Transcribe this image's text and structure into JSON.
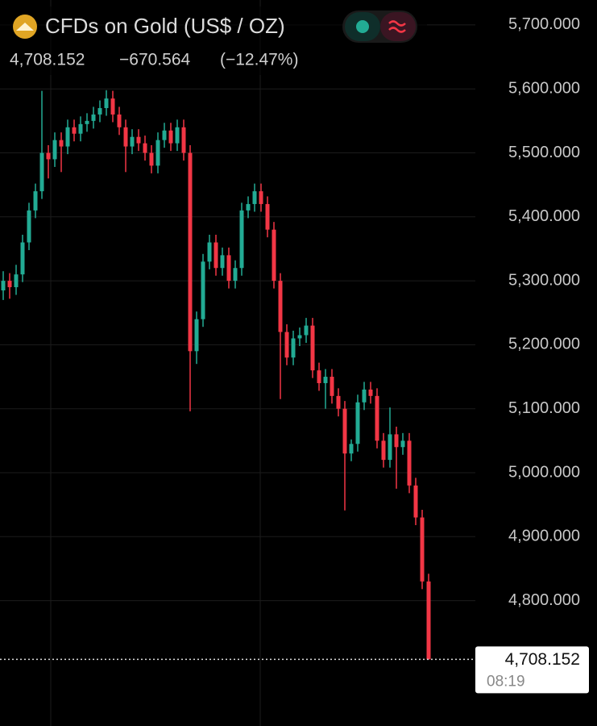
{
  "chart_data": {
    "type": "candlestick",
    "title": "CFDs on Gold (US$ / OZ)",
    "last": "4,708.152",
    "change": "−670.564",
    "change_pct": "(−12.47%)",
    "time": "08:19",
    "up_color": "#22ab94",
    "down_color": "#f23645",
    "ylim": [
      4604,
      5739
    ],
    "yticks": [
      {
        "value": 5700,
        "label": "5,700.000"
      },
      {
        "value": 5600,
        "label": "5,600.000"
      },
      {
        "value": 5500,
        "label": "5,500.000"
      },
      {
        "value": 5400,
        "label": "5,400.000"
      },
      {
        "value": 5300,
        "label": "5,300.000"
      },
      {
        "value": 5200,
        "label": "5,200.000"
      },
      {
        "value": 5100,
        "label": "5,100.000"
      },
      {
        "value": 5000,
        "label": "5,000.000"
      },
      {
        "value": 4900,
        "label": "4,900.000"
      },
      {
        "value": 4800,
        "label": "4,800.000"
      }
    ],
    "grid": true,
    "open": [
      5285,
      5300,
      5290,
      5310,
      5360,
      5410,
      5440,
      5500,
      5490,
      5520,
      5510,
      5540,
      5530,
      5545,
      5550,
      5560,
      5570,
      5585,
      5560,
      5540,
      5510,
      5525,
      5515,
      5500,
      5480,
      5520,
      5535,
      5515,
      5540,
      5500,
      5190,
      5240,
      5330,
      5360,
      5320,
      5340,
      5300,
      5320,
      5410,
      5420,
      5440,
      5420,
      5380,
      5300,
      5220,
      5180,
      5210,
      5215,
      5230,
      5160,
      5140,
      5150,
      5120,
      5100,
      5030,
      5045,
      5110,
      5130,
      5120,
      5050,
      5020,
      5060,
      5040,
      5050,
      4980,
      4930,
      4830
    ],
    "high": [
      5315,
      5312,
      5325,
      5372,
      5422,
      5452,
      5597,
      5512,
      5532,
      5532,
      5552,
      5552,
      5557,
      5562,
      5572,
      5582,
      5598,
      5597,
      5572,
      5552,
      5537,
      5537,
      5527,
      5512,
      5532,
      5547,
      5547,
      5552,
      5552,
      5512,
      5252,
      5342,
      5372,
      5372,
      5352,
      5352,
      5332,
      5422,
      5432,
      5452,
      5452,
      5432,
      5392,
      5312,
      5232,
      5222,
      5227,
      5242,
      5242,
      5172,
      5162,
      5162,
      5132,
      5112,
      5052,
      5122,
      5142,
      5142,
      5132,
      5062,
      5102,
      5072,
      5062,
      5062,
      4992,
      4942,
      4842
    ],
    "low": [
      5270,
      5272,
      5278,
      5298,
      5348,
      5398,
      5428,
      5460,
      5478,
      5470,
      5498,
      5518,
      5518,
      5533,
      5538,
      5548,
      5558,
      5548,
      5528,
      5470,
      5498,
      5503,
      5488,
      5468,
      5468,
      5508,
      5503,
      5503,
      5488,
      5096,
      5170,
      5228,
      5318,
      5308,
      5308,
      5288,
      5288,
      5308,
      5398,
      5408,
      5408,
      5368,
      5288,
      5115,
      5168,
      5168,
      5198,
      5203,
      5148,
      5128,
      5100,
      5108,
      5088,
      4941,
      5018,
      5033,
      5098,
      5108,
      5038,
      5008,
      5008,
      4975,
      5028,
      4968,
      4918,
      4818,
      4708.152
    ],
    "close": [
      5300,
      5290,
      5310,
      5360,
      5410,
      5440,
      5500,
      5490,
      5520,
      5510,
      5540,
      5530,
      5545,
      5550,
      5560,
      5570,
      5585,
      5560,
      5540,
      5510,
      5525,
      5515,
      5500,
      5480,
      5520,
      5535,
      5515,
      5540,
      5500,
      5190,
      5240,
      5330,
      5360,
      5320,
      5340,
      5300,
      5320,
      5410,
      5420,
      5440,
      5420,
      5380,
      5300,
      5220,
      5180,
      5210,
      5215,
      5230,
      5160,
      5140,
      5150,
      5120,
      5100,
      5030,
      5045,
      5110,
      5130,
      5120,
      5050,
      5020,
      5060,
      5040,
      5050,
      4980,
      4930,
      4830,
      4708.152
    ]
  }
}
